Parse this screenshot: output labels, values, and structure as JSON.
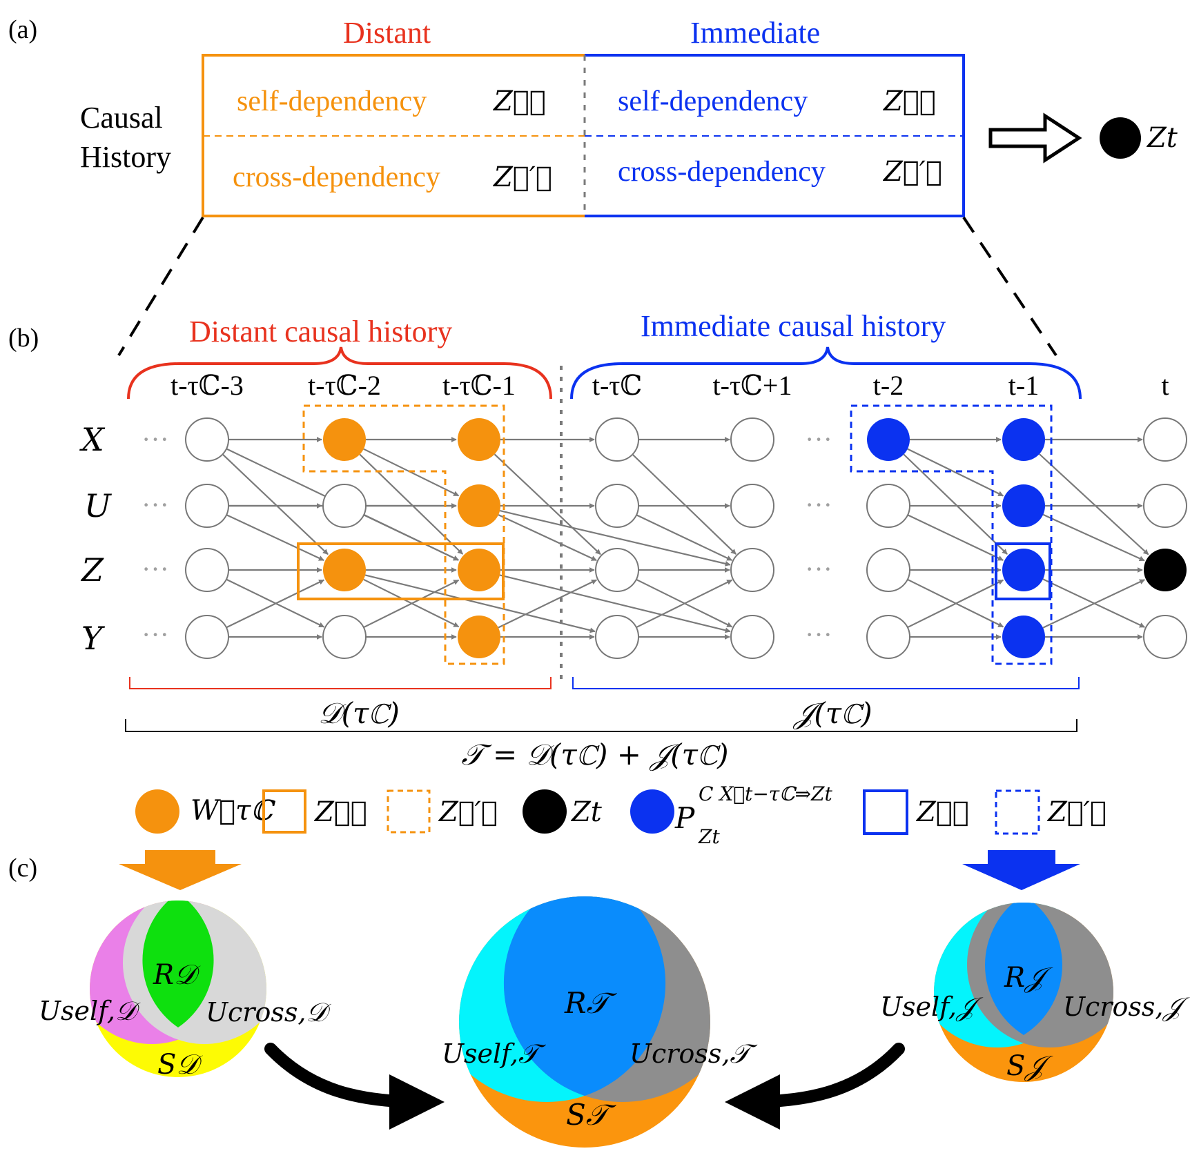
{
  "panel_labels": {
    "a": "(a)",
    "b": "(b)",
    "c": "(c)"
  },
  "panel_a": {
    "distant_title": "Distant",
    "immediate_title": "Immediate",
    "row_label_line1": "Causal",
    "row_label_line2": "History",
    "self_dep": "self-dependency",
    "cross_dep": "cross-dependency",
    "z_d": "Z⃗𝒟",
    "z_d_prime": "Z⃗′𝒟",
    "z_j": "Z⃗𝒥",
    "z_j_prime": "Z⃗′𝒥",
    "target": "Zt",
    "colors": {
      "distant": "#f5920e",
      "immediate": "#0b32f0",
      "title_distant": "#e8321e"
    }
  },
  "panel_b": {
    "distant_brace": "Distant causal history",
    "immediate_brace": "Immediate causal history",
    "times": [
      "t-τℂ-3",
      "t-τℂ-2",
      "t-τℂ-1",
      "t-τℂ",
      "t-τℂ+1",
      "t-2",
      "t-1",
      "t"
    ],
    "variables": [
      "X",
      "U",
      "Z",
      "Y"
    ],
    "ellipsis": "···",
    "d_span": "𝒟(τℂ)",
    "j_span": "𝒥(τℂ)",
    "total_span": "𝒯 = 𝒟(τℂ) + 𝒥(τℂ)"
  },
  "legend": {
    "w": "W⃗τℂ",
    "z_d": "Z⃗𝒟",
    "z_d_prime": "Z⃗′𝒟",
    "z_t": "Zt",
    "p": "P",
    "p_sup": "C X⃗t−τℂ⇒Zt",
    "p_sub": "Zt",
    "z_j": "Z⃗𝒥",
    "z_j_prime": "Z⃗′𝒥"
  },
  "panel_c": {
    "distant_venn": {
      "r": "R𝒟",
      "u_self": "Uself,𝒟",
      "u_cross": "Ucross,𝒟",
      "s": "S𝒟"
    },
    "total_venn": {
      "r": "R𝒯",
      "u_self": "Uself,𝒯",
      "u_cross": "Ucross,𝒯",
      "s": "S𝒯"
    },
    "immediate_venn": {
      "r": "R𝒥",
      "u_self": "Uself,𝒥",
      "u_cross": "Ucross,𝒥",
      "s": "S𝒥"
    },
    "colors": {
      "pink": "#ea80e8",
      "green": "#0ee00e",
      "light_gray": "#d8d8d8",
      "yellow": "#fdfb04",
      "cyan": "#04f4fc",
      "mid_blue": "#0a8cfc",
      "gray": "#8e8e8e",
      "orange": "#fb950d"
    }
  }
}
